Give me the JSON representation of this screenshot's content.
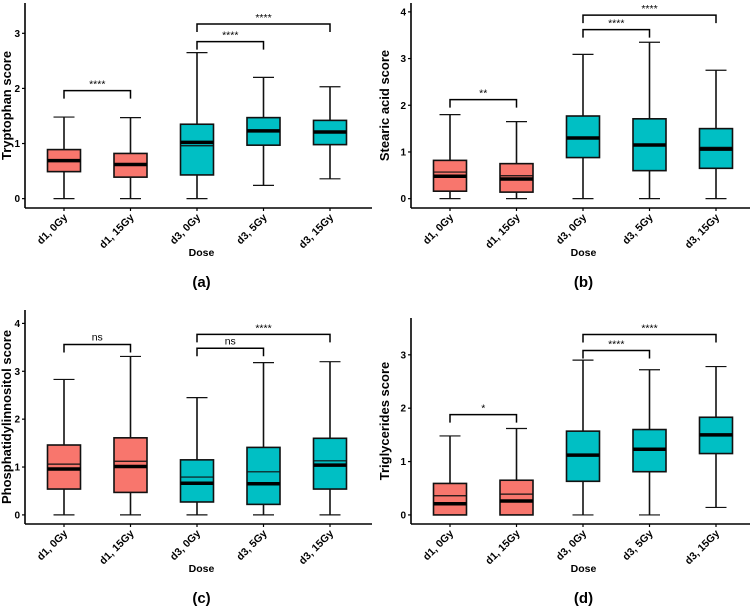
{
  "colors": {
    "d1": "#F8766D",
    "d3": "#00BFC4",
    "outline": "#111111"
  },
  "chart_data": [
    {
      "type": "box",
      "panel_label": "(a)",
      "ylabel": "Tryptophan score",
      "xlabel": "Dose",
      "categories": [
        "d1, 0Gy",
        "d1, 15Gy",
        "d3, 0Gy",
        "d3, 5Gy",
        "d3, 15Gy"
      ],
      "groups": [
        "d1",
        "d1",
        "d3",
        "d3",
        "d3"
      ],
      "yticks": [
        0,
        1,
        2,
        3
      ],
      "ylim": [
        -0.17,
        3.55
      ],
      "boxes": [
        {
          "min": 0,
          "q1": 0.49,
          "median": 0.69,
          "q3": 0.89,
          "max": 1.48
        },
        {
          "min": 0,
          "q1": 0.39,
          "median": 0.62,
          "q3": 0.82,
          "max": 1.47
        },
        {
          "min": 0,
          "q1": 0.43,
          "median": 1.02,
          "mean": 0.96,
          "q3": 1.35,
          "max": 2.65
        },
        {
          "min": 0.24,
          "q1": 0.97,
          "median": 1.23,
          "q3": 1.47,
          "max": 2.2
        },
        {
          "min": 0.36,
          "q1": 0.98,
          "median": 1.21,
          "q3": 1.42,
          "max": 2.03
        }
      ],
      "comparisons": [
        {
          "from": 0,
          "to": 1,
          "y": 1.96,
          "label": "****"
        },
        {
          "from": 2,
          "to": 3,
          "y": 2.85,
          "label": "****"
        },
        {
          "from": 2,
          "to": 4,
          "y": 3.17,
          "label": "****"
        }
      ]
    },
    {
      "type": "box",
      "panel_label": "(b)",
      "ylabel": "Stearic acid score",
      "xlabel": "Dose",
      "categories": [
        "d1, 0Gy",
        "d1, 15Gy",
        "d3, 0Gy",
        "d3, 5Gy",
        "d3, 15Gy"
      ],
      "groups": [
        "d1",
        "d1",
        "d3",
        "d3",
        "d3"
      ],
      "yticks": [
        0,
        1,
        2,
        3,
        4
      ],
      "ylim": [
        -0.2,
        4.19
      ],
      "boxes": [
        {
          "min": 0,
          "q1": 0.16,
          "median": 0.48,
          "mean": 0.57,
          "q3": 0.82,
          "max": 1.8
        },
        {
          "min": 0,
          "q1": 0.14,
          "median": 0.42,
          "mean": 0.49,
          "q3": 0.75,
          "max": 1.65
        },
        {
          "min": 0,
          "q1": 0.88,
          "median": 1.3,
          "q3": 1.77,
          "max": 3.09
        },
        {
          "min": 0,
          "q1": 0.6,
          "median": 1.15,
          "q3": 1.71,
          "max": 3.35
        },
        {
          "min": 0,
          "q1": 0.65,
          "median": 1.06,
          "mean": 1.1,
          "q3": 1.5,
          "max": 2.75
        }
      ],
      "comparisons": [
        {
          "from": 0,
          "to": 1,
          "y": 2.12,
          "label": "**"
        },
        {
          "from": 2,
          "to": 3,
          "y": 3.62,
          "label": "****"
        },
        {
          "from": 2,
          "to": 4,
          "y": 3.93,
          "label": "****"
        }
      ]
    },
    {
      "type": "box",
      "panel_label": "(c)",
      "ylabel": "Phosphatidylinnositol score",
      "xlabel": "Dose",
      "categories": [
        "d1, 0Gy",
        "d1, 15Gy",
        "d3, 0Gy",
        "d3, 5Gy",
        "d3, 15Gy"
      ],
      "groups": [
        "d1",
        "d1",
        "d3",
        "d3",
        "d3"
      ],
      "yticks": [
        0,
        1,
        2,
        3,
        4
      ],
      "ylim": [
        -0.19,
        4.28
      ],
      "boxes": [
        {
          "min": 0,
          "q1": 0.54,
          "median": 0.96,
          "mean": 1.06,
          "q3": 1.46,
          "max": 2.83
        },
        {
          "min": 0,
          "q1": 0.47,
          "median": 1.01,
          "mean": 1.12,
          "q3": 1.61,
          "max": 3.31
        },
        {
          "min": 0,
          "q1": 0.27,
          "median": 0.66,
          "mean": 0.79,
          "q3": 1.15,
          "max": 2.45
        },
        {
          "min": 0,
          "q1": 0.22,
          "median": 0.65,
          "mean": 0.9,
          "q3": 1.41,
          "max": 3.18
        },
        {
          "min": 0,
          "q1": 0.54,
          "median": 1.04,
          "mean": 1.13,
          "q3": 1.6,
          "max": 3.2
        }
      ],
      "comparisons": [
        {
          "from": 0,
          "to": 1,
          "y": 3.56,
          "label": "ns"
        },
        {
          "from": 2,
          "to": 3,
          "y": 3.48,
          "label": "ns"
        },
        {
          "from": 2,
          "to": 4,
          "y": 3.77,
          "label": "****"
        }
      ]
    },
    {
      "type": "box",
      "panel_label": "(d)",
      "ylabel": "Triglycerides score",
      "xlabel": "Dose",
      "categories": [
        "d1, 0Gy",
        "d1, 15Gy",
        "d3, 0Gy",
        "d3, 5Gy",
        "d3, 15Gy"
      ],
      "groups": [
        "d1",
        "d1",
        "d3",
        "d3",
        "d3"
      ],
      "yticks": [
        0,
        1,
        2,
        3
      ],
      "ylim": [
        -0.17,
        3.69
      ],
      "boxes": [
        {
          "min": 0,
          "q1": 0,
          "median": 0.21,
          "mean": 0.36,
          "q3": 0.59,
          "max": 1.48
        },
        {
          "min": 0,
          "q1": 0,
          "median": 0.26,
          "mean": 0.39,
          "q3": 0.65,
          "max": 1.62
        },
        {
          "min": 0,
          "q1": 0.63,
          "median": 1.12,
          "q3": 1.57,
          "max": 2.9
        },
        {
          "min": 0,
          "q1": 0.81,
          "median": 1.23,
          "q3": 1.6,
          "max": 2.72
        },
        {
          "min": 0.14,
          "q1": 1.15,
          "median": 1.5,
          "q3": 1.83,
          "max": 2.78
        }
      ],
      "comparisons": [
        {
          "from": 0,
          "to": 1,
          "y": 1.88,
          "label": "*"
        },
        {
          "from": 2,
          "to": 3,
          "y": 3.08,
          "label": "****"
        },
        {
          "from": 2,
          "to": 4,
          "y": 3.38,
          "label": "****"
        }
      ]
    }
  ]
}
